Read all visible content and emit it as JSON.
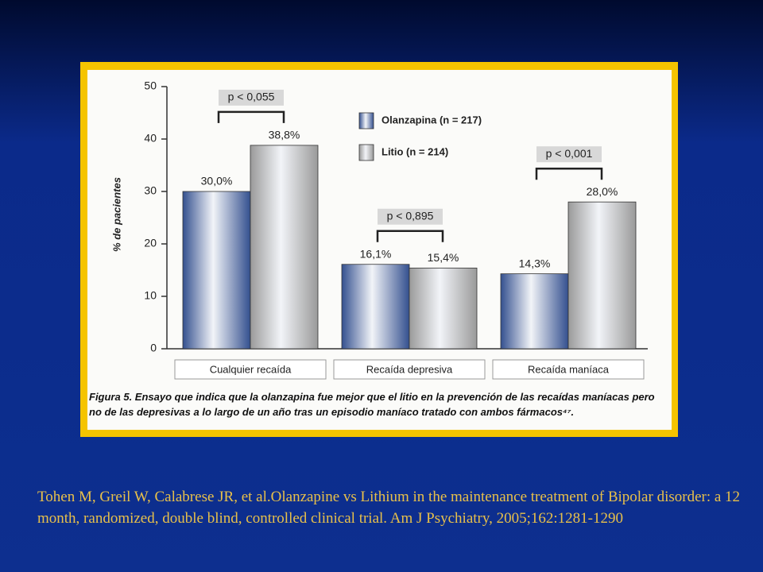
{
  "chart_data": {
    "type": "bar",
    "ylabel": "% de pacientes",
    "categories": [
      "Cualquier recaída",
      "Recaída depresiva",
      "Recaída maníaca"
    ],
    "series": [
      {
        "name": "Olanzapina (n = 217)",
        "color": "#34508f",
        "values": [
          30.0,
          16.1,
          14.3
        ],
        "value_labels": [
          "30,0%",
          "16,1%",
          "14,3%"
        ]
      },
      {
        "name": "Litio (n = 214)",
        "color": "#9a9a9a",
        "values": [
          38.8,
          15.4,
          28.0
        ],
        "value_labels": [
          "38,8%",
          "15,4%",
          "28,0%"
        ]
      }
    ],
    "annotations": [
      "p < 0,055",
      "p < 0,895",
      "p < 0,001"
    ],
    "ylim": [
      0,
      50
    ],
    "yticks": [
      0,
      10,
      20,
      30,
      40,
      50
    ],
    "caption": "Figura 5. Ensayo que indica que la olanzapina fue mejor que el litio en la prevención de las recaídas maníacas pero no de las depresivas a lo largo de un año tras un episodio maníaco tratado con ambos fármacos⁴⁷."
  },
  "citation": "Tohen M, Greil W, Calabrese JR, et al.Olanzapine vs Lithium in the maintenance treatment of Bipolar disorder: a 12 month, randomized, double blind, controlled clinical trial. Am J Psychiatry, 2005;162:1281-1290"
}
